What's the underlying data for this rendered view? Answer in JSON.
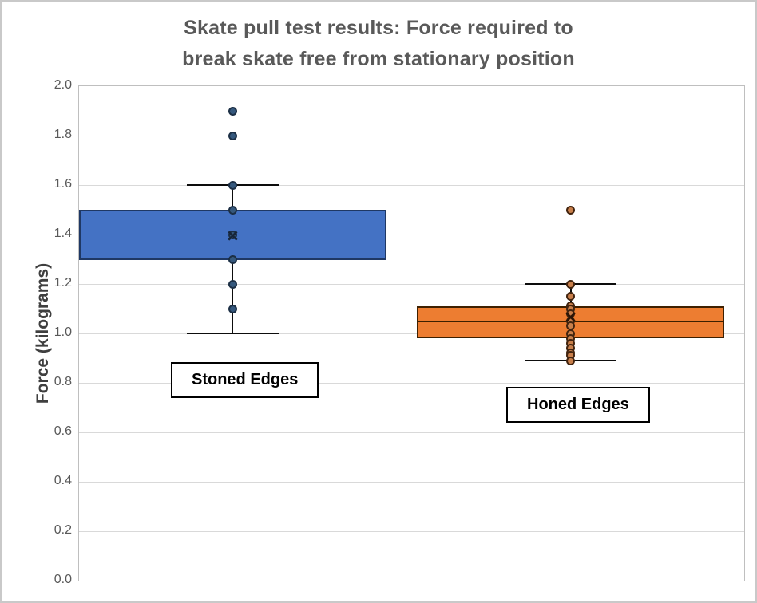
{
  "chart_data": {
    "type": "boxplot",
    "title": "Skate pull test results: Force required to break skate free from stationary position",
    "title_lines": [
      "Skate pull test results: Force required to",
      "break skate free from stationary position"
    ],
    "ylabel": "Force (kilograms)",
    "ylim": [
      0.0,
      2.0
    ],
    "ytick_step": 0.2,
    "yticks": [
      "2.0",
      "1.8",
      "1.6",
      "1.4",
      "1.2",
      "1.0",
      "0.8",
      "0.6",
      "0.4",
      "0.2",
      "0.0"
    ],
    "grid": "horizontal",
    "legend_position": "none",
    "series": [
      {
        "name": "Stoned Edges",
        "label": "Stoned Edges",
        "q1": 1.3,
        "median": 1.3,
        "q3": 1.5,
        "whisker_low": 1.0,
        "whisker_high": 1.6,
        "mean": 1.39,
        "outliers": [
          1.8,
          1.9
        ],
        "points": [
          1.9,
          1.8,
          1.6,
          1.5,
          1.4,
          1.3,
          1.2,
          1.1
        ],
        "box_fill": "#4472C4",
        "box_border": "#1F3864",
        "point_fill": "#35587D",
        "point_edge": "#1C2F45",
        "mean_color": "#17263B"
      },
      {
        "name": "Honed Edges",
        "label": "Honed Edges",
        "q1": 0.98,
        "median": 1.05,
        "q3": 1.11,
        "whisker_low": 0.89,
        "whisker_high": 1.2,
        "mean": 1.06,
        "outliers": [
          1.5
        ],
        "points": [
          1.5,
          1.2,
          1.15,
          1.11,
          1.1,
          1.08,
          1.05,
          1.03,
          1.0,
          0.98,
          0.96,
          0.94,
          0.92,
          0.91,
          0.89
        ],
        "box_fill": "#ED7D31",
        "box_border": "#3E2000",
        "point_fill": "#C87F4B",
        "point_edge": "#42240F",
        "mean_color": "#2A1507"
      }
    ],
    "colors": {
      "stoned": "#4472C4",
      "honed": "#ED7D31",
      "grid": "#D9D9D9",
      "text": "#595959"
    }
  }
}
